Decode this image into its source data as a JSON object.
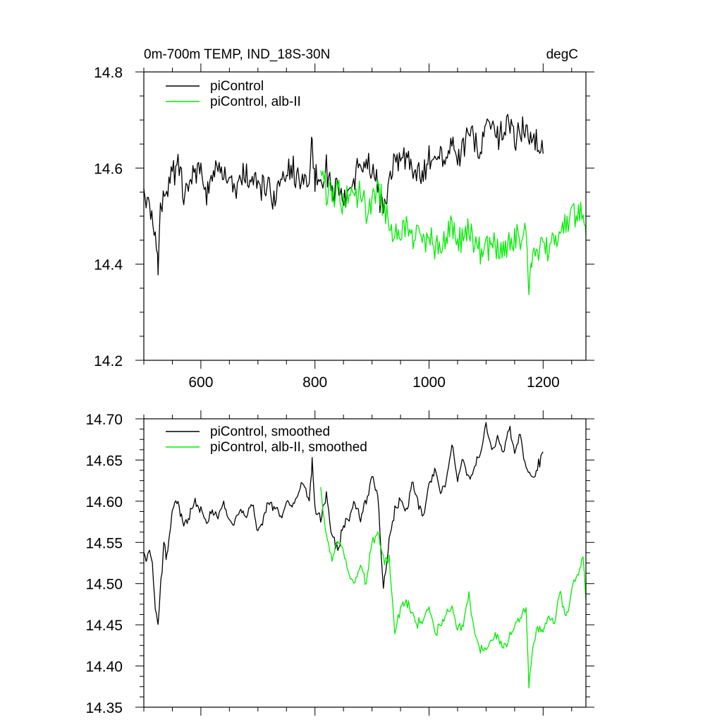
{
  "chart_data": [
    {
      "type": "line",
      "title": "0m-700m TEMP, IND_18S-30N",
      "units_label": "degC",
      "xlim": [
        500,
        1275
      ],
      "ylim": [
        14.2,
        14.8
      ],
      "x_ticks": [
        600,
        800,
        1000,
        1200
      ],
      "x_tick_labels": [
        "600",
        "800",
        "1000",
        "1200"
      ],
      "y_ticks": [
        14.2,
        14.4,
        14.6,
        14.8
      ],
      "y_tick_labels": [
        "14.2",
        "14.4",
        "14.6",
        "14.8"
      ],
      "legend": [
        {
          "label": "piControl",
          "color": "#000000"
        },
        {
          "label": "piControl, alb-II",
          "color": "#00ee00"
        }
      ],
      "series": [
        {
          "name": "piControl",
          "color": "#000000",
          "x": [
            500,
            510,
            520,
            525,
            530,
            540,
            550,
            560,
            570,
            580,
            590,
            600,
            610,
            620,
            630,
            640,
            650,
            660,
            670,
            680,
            690,
            700,
            710,
            720,
            730,
            740,
            750,
            760,
            770,
            780,
            790,
            795,
            800,
            810,
            820,
            830,
            840,
            850,
            860,
            870,
            880,
            890,
            900,
            910,
            920,
            930,
            940,
            950,
            960,
            970,
            980,
            990,
            1000,
            1010,
            1020,
            1030,
            1040,
            1050,
            1060,
            1070,
            1080,
            1090,
            1100,
            1110,
            1120,
            1130,
            1140,
            1150,
            1160,
            1170,
            1180,
            1190,
            1200
          ],
          "values": [
            14.55,
            14.5,
            14.47,
            14.39,
            14.53,
            14.56,
            14.59,
            14.6,
            14.55,
            14.58,
            14.58,
            14.6,
            14.54,
            14.6,
            14.58,
            14.59,
            14.57,
            14.54,
            14.59,
            14.58,
            14.58,
            14.55,
            14.56,
            14.56,
            14.53,
            14.56,
            14.59,
            14.6,
            14.58,
            14.59,
            14.59,
            14.65,
            14.58,
            14.57,
            14.6,
            14.55,
            14.56,
            14.53,
            14.56,
            14.58,
            14.62,
            14.61,
            14.6,
            14.56,
            14.5,
            14.58,
            14.62,
            14.61,
            14.62,
            14.6,
            14.59,
            14.58,
            14.62,
            14.64,
            14.63,
            14.6,
            14.65,
            14.62,
            14.64,
            14.67,
            14.65,
            14.64,
            14.69,
            14.67,
            14.66,
            14.68,
            14.7,
            14.66,
            14.69,
            14.66,
            14.68,
            14.65,
            14.63
          ]
        },
        {
          "name": "piControl, alb-II",
          "color": "#00ee00",
          "x": [
            810,
            820,
            830,
            840,
            850,
            860,
            870,
            880,
            890,
            900,
            910,
            920,
            930,
            940,
            950,
            960,
            970,
            980,
            990,
            1000,
            1010,
            1020,
            1030,
            1040,
            1050,
            1060,
            1070,
            1080,
            1090,
            1100,
            1110,
            1120,
            1130,
            1140,
            1150,
            1160,
            1170,
            1175,
            1180,
            1190,
            1200,
            1210,
            1220,
            1230,
            1240,
            1250,
            1260,
            1270,
            1275
          ],
          "values": [
            14.6,
            14.55,
            14.54,
            14.55,
            14.53,
            14.54,
            14.54,
            14.55,
            14.51,
            14.53,
            14.57,
            14.52,
            14.5,
            14.46,
            14.47,
            14.48,
            14.45,
            14.46,
            14.44,
            14.47,
            14.44,
            14.45,
            14.46,
            14.48,
            14.45,
            14.45,
            14.47,
            14.44,
            14.43,
            14.43,
            14.44,
            14.44,
            14.43,
            14.44,
            14.45,
            14.46,
            14.46,
            14.36,
            14.4,
            14.43,
            14.44,
            14.43,
            14.45,
            14.47,
            14.48,
            14.5,
            14.51,
            14.52,
            14.46
          ]
        }
      ]
    },
    {
      "type": "line",
      "xlim": [
        500,
        1275
      ],
      "ylim": [
        14.35,
        14.7
      ],
      "x_ticks": [
        600,
        800,
        1000,
        1200
      ],
      "y_ticks": [
        14.35,
        14.4,
        14.45,
        14.5,
        14.55,
        14.6,
        14.65,
        14.7
      ],
      "y_tick_labels": [
        "14.35",
        "14.40",
        "14.45",
        "14.50",
        "14.55",
        "14.60",
        "14.65",
        "14.70"
      ],
      "legend": [
        {
          "label": "piControl, smoothed",
          "color": "#000000"
        },
        {
          "label": "piControl, alb-II, smoothed",
          "color": "#00ee00"
        }
      ],
      "series": [
        {
          "name": "piControl, smoothed",
          "color": "#000000",
          "x": [
            500,
            505,
            510,
            515,
            520,
            525,
            530,
            535,
            540,
            545,
            550,
            560,
            570,
            580,
            590,
            600,
            610,
            620,
            630,
            640,
            650,
            660,
            670,
            680,
            690,
            700,
            710,
            720,
            730,
            740,
            750,
            760,
            770,
            780,
            790,
            795,
            800,
            810,
            820,
            830,
            840,
            850,
            860,
            870,
            880,
            890,
            900,
            910,
            920,
            930,
            940,
            950,
            960,
            970,
            980,
            990,
            1000,
            1010,
            1020,
            1030,
            1040,
            1050,
            1060,
            1070,
            1080,
            1090,
            1100,
            1110,
            1120,
            1130,
            1140,
            1150,
            1160,
            1170,
            1180,
            1190,
            1200
          ],
          "values": [
            14.54,
            14.53,
            14.54,
            14.52,
            14.47,
            14.45,
            14.5,
            14.55,
            14.53,
            14.56,
            14.59,
            14.6,
            14.57,
            14.58,
            14.6,
            14.59,
            14.57,
            14.59,
            14.58,
            14.6,
            14.57,
            14.58,
            14.59,
            14.58,
            14.6,
            14.56,
            14.58,
            14.6,
            14.59,
            14.58,
            14.6,
            14.59,
            14.61,
            14.62,
            14.6,
            14.65,
            14.59,
            14.58,
            14.61,
            14.56,
            14.54,
            14.57,
            14.58,
            14.6,
            14.58,
            14.6,
            14.63,
            14.61,
            14.49,
            14.55,
            14.59,
            14.6,
            14.59,
            14.62,
            14.6,
            14.58,
            14.62,
            14.64,
            14.61,
            14.62,
            14.67,
            14.63,
            14.65,
            14.63,
            14.64,
            14.66,
            14.69,
            14.66,
            14.68,
            14.66,
            14.69,
            14.66,
            14.68,
            14.64,
            14.63,
            14.64,
            14.66
          ]
        },
        {
          "name": "piControl, alb-II, smoothed",
          "color": "#00ee00",
          "x": [
            810,
            820,
            830,
            840,
            850,
            860,
            870,
            880,
            890,
            900,
            910,
            920,
            930,
            940,
            950,
            960,
            970,
            980,
            990,
            1000,
            1010,
            1020,
            1030,
            1040,
            1050,
            1060,
            1070,
            1080,
            1090,
            1100,
            1110,
            1120,
            1130,
            1140,
            1150,
            1160,
            1170,
            1175,
            1180,
            1190,
            1200,
            1210,
            1220,
            1230,
            1240,
            1250,
            1260,
            1270,
            1275
          ],
          "values": [
            14.61,
            14.56,
            14.53,
            14.55,
            14.54,
            14.51,
            14.5,
            14.52,
            14.5,
            14.55,
            14.56,
            14.53,
            14.53,
            14.44,
            14.47,
            14.48,
            14.46,
            14.45,
            14.46,
            14.47,
            14.44,
            14.45,
            14.46,
            14.47,
            14.45,
            14.45,
            14.49,
            14.44,
            14.42,
            14.42,
            14.43,
            14.44,
            14.42,
            14.43,
            14.45,
            14.46,
            14.47,
            14.38,
            14.41,
            14.45,
            14.44,
            14.46,
            14.45,
            14.49,
            14.46,
            14.49,
            14.51,
            14.53,
            14.48
          ]
        }
      ]
    }
  ]
}
